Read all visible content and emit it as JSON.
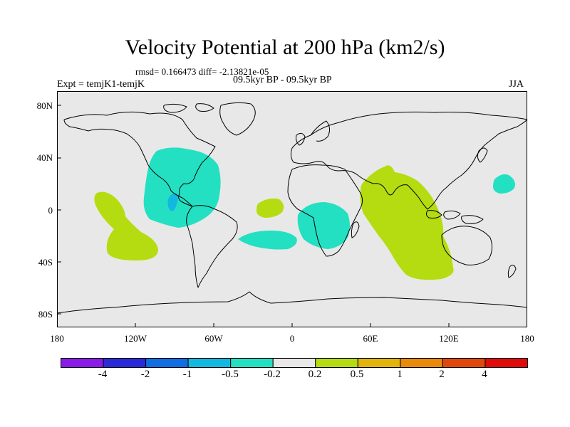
{
  "figure": {
    "title": "Velocity Potential at 200 hPa (km2/s)",
    "stats": "rmsd= 0.166473 diff= -2.13821e-05",
    "experiment": "Expt = temjK1-temjK",
    "period": "09.5kyr BP - 09.5kyr BP",
    "season": "JJA"
  },
  "map": {
    "projection": "cylindrical equidistant",
    "lat_labels": [
      "80N",
      "40N",
      "0",
      "40S",
      "80S"
    ],
    "lon_labels": [
      "180",
      "120W",
      "60W",
      "0",
      "60E",
      "120E",
      "180"
    ],
    "colors": {
      "background": "#e8e8e8",
      "neg_0_5_to_0_2": "#23e0c2",
      "neg_1_to_0_5": "#12b8e0",
      "pos_0_2_to_0_5": "#b5dc10",
      "coastline": "#000000"
    }
  },
  "colorbar": {
    "labels": [
      "-4",
      "-2",
      "-1",
      "-0.5",
      "-0.2",
      "0.2",
      "0.5",
      "1",
      "2",
      "4"
    ],
    "colors": [
      "#8a1ae8",
      "#2a2ad8",
      "#0f6ee0",
      "#12b8e0",
      "#23e0c2",
      "#e8e8e8",
      "#b5dc10",
      "#e0b40a",
      "#e88a0a",
      "#e0480a",
      "#e00a0a"
    ]
  }
}
